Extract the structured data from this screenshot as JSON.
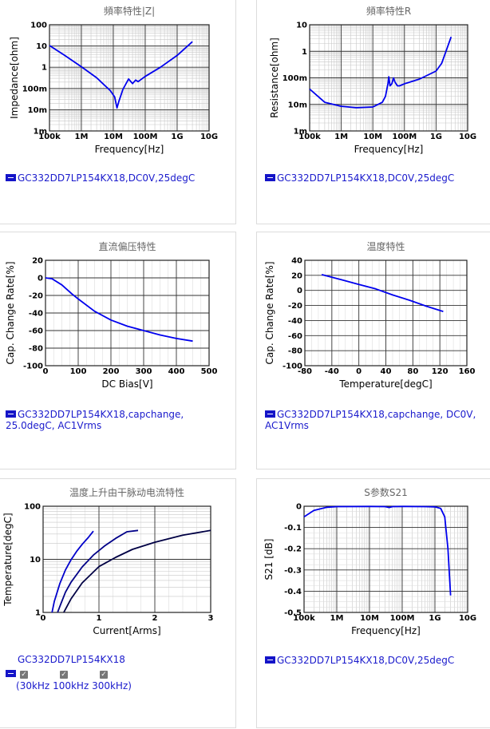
{
  "charts": [
    {
      "title": "頻率特性|Z|",
      "xlabel": "Frequency[Hz]",
      "ylabel": "Impedance[ohm]",
      "legend": "GC332DD7LP154KX18,DC0V,25degC",
      "chart_data": {
        "type": "line",
        "xscale": "log",
        "yscale": "log",
        "xlim": [
          100000,
          10000000000
        ],
        "ylim": [
          0.001,
          100
        ],
        "xticks": [
          100000,
          1000000,
          10000000,
          100000000,
          1000000000,
          10000000000
        ],
        "xtick_labels": [
          "100k",
          "1M",
          "10M",
          "100M",
          "1G",
          "10G"
        ],
        "yticks": [
          0.001,
          0.01,
          0.1,
          1,
          10,
          100
        ],
        "ytick_labels": [
          "1m",
          "10m",
          "100m",
          "1",
          "10",
          "100"
        ],
        "grid": true,
        "series": [
          {
            "color": "#0000ee",
            "x": [
              100000,
              300000,
              1000000,
              3000000,
              8000000,
              11000000,
              13000000,
              15000000,
              20000000,
              30000000,
              40000000,
              50000000,
              60000000,
              100000000,
              300000000,
              1000000000,
              3000000000
            ],
            "y": [
              10.5,
              3.6,
              1.05,
              0.32,
              0.08,
              0.04,
              0.012,
              0.025,
              0.09,
              0.28,
              0.17,
              0.25,
              0.21,
              0.37,
              1.0,
              3.6,
              16.0
            ]
          }
        ]
      }
    },
    {
      "title": "頻率特性R",
      "xlabel": "Frequency[Hz]",
      "ylabel": "Resistance[ohm]",
      "legend": "GC332DD7LP154KX18,DC0V,25degC",
      "chart_data": {
        "type": "line",
        "xscale": "log",
        "yscale": "log",
        "xlim": [
          100000,
          10000000000
        ],
        "ylim": [
          0.001,
          10
        ],
        "xticks": [
          100000,
          1000000,
          10000000,
          100000000,
          1000000000,
          10000000000
        ],
        "xtick_labels": [
          "100k",
          "1M",
          "10M",
          "100M",
          "1G",
          "10G"
        ],
        "yticks": [
          0.001,
          0.01,
          0.1,
          1,
          10
        ],
        "ytick_labels": [
          "1m",
          "10m",
          "100m",
          "1",
          "10"
        ],
        "grid": true,
        "series": [
          {
            "color": "#0000ee",
            "x": [
              100000,
              300000,
              1000000,
              3000000,
              10000000,
              20000000,
              25000000,
              30000000,
              32000000,
              35000000,
              40000000,
              45000000,
              50000000,
              60000000,
              70000000,
              100000000,
              300000000,
              1000000000,
              1500000000,
              2000000000,
              3000000000
            ],
            "y": [
              0.038,
              0.012,
              0.0085,
              0.0075,
              0.008,
              0.012,
              0.02,
              0.06,
              0.11,
              0.05,
              0.06,
              0.1,
              0.07,
              0.05,
              0.05,
              0.06,
              0.09,
              0.18,
              0.35,
              0.9,
              3.5
            ]
          }
        ]
      }
    },
    {
      "title": "直流偏压特性",
      "xlabel": "DC Bias[V]",
      "ylabel": "Cap. Change Rate[%]",
      "legend": "GC332DD7LP154KX18,capchange, 25.0degC, AC1Vrms",
      "chart_data": {
        "type": "line",
        "xscale": "linear",
        "yscale": "linear",
        "xlim": [
          0,
          500
        ],
        "ylim": [
          -100,
          20
        ],
        "xticks": [
          0,
          100,
          200,
          300,
          400,
          500
        ],
        "xtick_labels": [
          "0",
          "100",
          "200",
          "300",
          "400",
          "500"
        ],
        "yticks": [
          -100,
          -80,
          -60,
          -40,
          -20,
          0,
          20
        ],
        "ytick_labels": [
          "-100",
          "-80",
          "-60",
          "-40",
          "-20",
          "0",
          "20"
        ],
        "grid": true,
        "series": [
          {
            "color": "#0000ee",
            "x": [
              0,
              20,
              50,
              80,
              100,
              150,
              200,
              250,
              300,
              350,
              400,
              450
            ],
            "y": [
              0,
              -1,
              -8,
              -18,
              -24,
              -38,
              -48,
              -55,
              -60,
              -65,
              -69,
              -72
            ]
          }
        ]
      }
    },
    {
      "title": "温度特性",
      "xlabel": "Temperature[degC]",
      "ylabel": "Cap. Change Rate[%]",
      "legend": "GC332DD7LP154KX18,capchange, DC0V, AC1Vrms",
      "chart_data": {
        "type": "line",
        "xscale": "linear",
        "yscale": "linear",
        "xlim": [
          -80,
          160
        ],
        "ylim": [
          -100,
          40
        ],
        "xticks": [
          -80,
          -40,
          0,
          40,
          80,
          120,
          160
        ],
        "xtick_labels": [
          "-80",
          "-40",
          "0",
          "40",
          "80",
          "120",
          "160"
        ],
        "yticks": [
          -100,
          -80,
          -60,
          -40,
          -20,
          0,
          20,
          40
        ],
        "ytick_labels": [
          "-100",
          "-80",
          "-60",
          "-40",
          "-20",
          "0",
          "20",
          "40"
        ],
        "grid": true,
        "series": [
          {
            "color": "#0000ee",
            "x": [
              -55,
              -25,
              0,
              25,
              50,
              75,
              100,
              125
            ],
            "y": [
              21,
              14,
              8,
              2,
              -6,
              -13,
              -21,
              -28
            ]
          }
        ]
      }
    },
    {
      "title": "温度上升由干脉动电流特性",
      "xlabel": "Current[Arms]",
      "ylabel": "Temperature[degC]",
      "legend": "GC332DD7LP154KX18",
      "legend_items": [
        "30kHz",
        "100kHz",
        "300kHz"
      ],
      "chart_data": {
        "type": "line",
        "xscale": "linear",
        "yscale": "log",
        "xlim": [
          0,
          3
        ],
        "ylim": [
          1,
          100
        ],
        "xticks": [
          0,
          1,
          2,
          3
        ],
        "xtick_labels": [
          "0",
          "1",
          "2",
          "3"
        ],
        "yticks": [
          1,
          10,
          100
        ],
        "ytick_labels": [
          "1",
          "10",
          "100"
        ],
        "grid": true,
        "series": [
          {
            "name": "30kHz",
            "color": "#0000cc",
            "x": [
              0.16,
              0.2,
              0.3,
              0.4,
              0.5,
              0.6,
              0.7,
              0.8,
              0.9
            ],
            "y": [
              1.0,
              1.6,
              3.5,
              6.3,
              9.8,
              14.1,
              19.2,
              25.1,
              34.0
            ]
          },
          {
            "name": "100kHz",
            "color": "#000088",
            "x": [
              0.26,
              0.3,
              0.4,
              0.5,
              0.7,
              0.9,
              1.1,
              1.3,
              1.5,
              1.7
            ],
            "y": [
              1.0,
              1.3,
              2.4,
              3.7,
              7.2,
              12.0,
              17.8,
              24.9,
              33.0,
              35.0
            ]
          },
          {
            "name": "300kHz",
            "color": "#000044",
            "x": [
              0.37,
              0.5,
              0.7,
              1.0,
              1.3,
              1.6,
              2.0,
              2.5,
              3.0
            ],
            "y": [
              1.0,
              1.8,
              3.6,
              7.3,
              10.9,
              15.4,
              21.0,
              28.5,
              35.0
            ]
          }
        ]
      }
    },
    {
      "title": "S参数S21",
      "xlabel": "Frequency[Hz]",
      "ylabel": "S21 [dB]",
      "legend": "GC332DD7LP154KX18,DC0V,25degC",
      "chart_data": {
        "type": "line",
        "xscale": "log",
        "yscale": "linear",
        "xlim": [
          100000,
          10000000000
        ],
        "ylim": [
          -0.5,
          0
        ],
        "xticks": [
          100000,
          1000000,
          10000000,
          100000000,
          1000000000,
          10000000000
        ],
        "xtick_labels": [
          "100k",
          "1M",
          "10M",
          "100M",
          "1G",
          "10G"
        ],
        "yticks": [
          -0.5,
          -0.4,
          -0.3,
          -0.2,
          -0.1,
          0
        ],
        "ytick_labels": [
          "-0.5",
          "-0.4",
          "-0.3",
          "-0.2",
          "-0.1",
          "0"
        ],
        "grid": true,
        "series": [
          {
            "color": "#0000ee",
            "x": [
              100000,
              200000,
              500000,
              1000000,
              10000000,
              30000000,
              40000000,
              50000000,
              100000000,
              500000000,
              1000000000,
              1500000000,
              2000000000,
              2500000000,
              3000000000
            ],
            "y": [
              -0.05,
              -0.02,
              -0.005,
              -0.002,
              -0.001,
              -0.002,
              -0.006,
              -0.002,
              -0.001,
              -0.002,
              -0.003,
              -0.01,
              -0.05,
              -0.2,
              -0.42
            ]
          }
        ]
      }
    }
  ]
}
